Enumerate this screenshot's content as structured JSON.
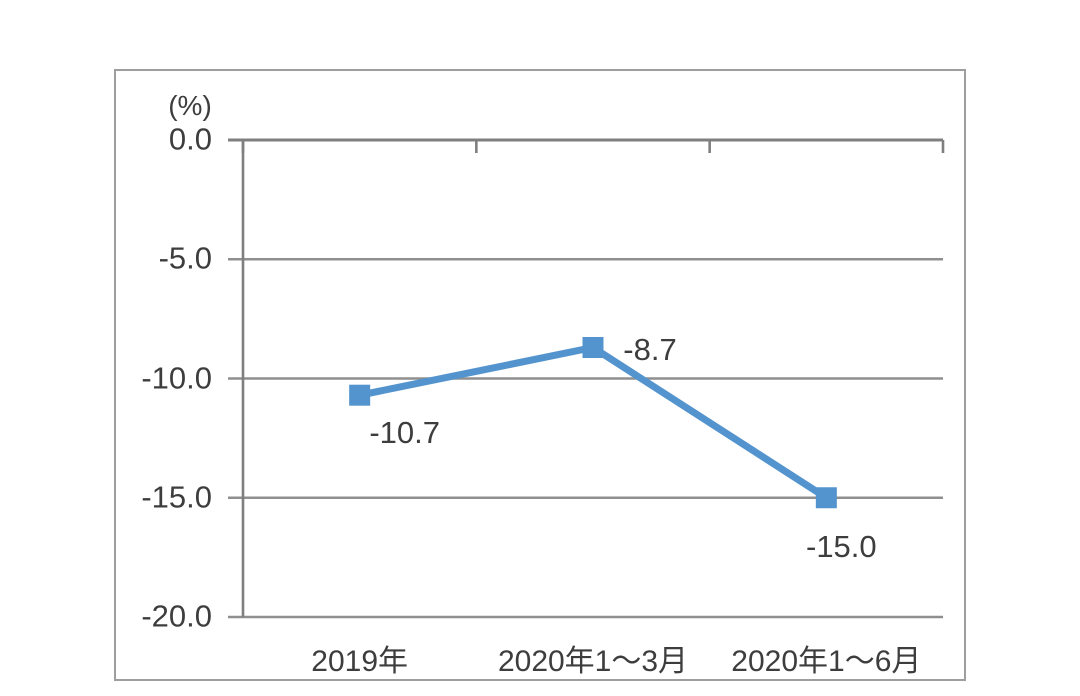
{
  "chart_data": {
    "type": "line",
    "title": "",
    "unit_label": "(%)",
    "categories": [
      "2019年",
      "2020年1～3月",
      "2020年1～6月"
    ],
    "series": [
      {
        "name": "",
        "values": [
          -10.7,
          -8.7,
          -15.0
        ],
        "color": "#5494CE",
        "marker": "square"
      }
    ],
    "data_labels": [
      "-10.7",
      "-8.7",
      "-15.0"
    ],
    "data_label_positions": [
      "below-right",
      "right",
      "below"
    ],
    "ylim": [
      -20,
      0
    ],
    "ytick_step": 5,
    "ytick_labels": [
      "0.0",
      "-5.0",
      "-10.0",
      "-15.0",
      "-20.0"
    ],
    "grid": "horizontal",
    "legend": "none",
    "colors": {
      "line": "#5494CE",
      "grid": "#8f8f8f",
      "axis": "#7f7f7f",
      "text": "#3d3d3d",
      "frame": "#9e9e9e",
      "background": "#ffffff"
    }
  }
}
